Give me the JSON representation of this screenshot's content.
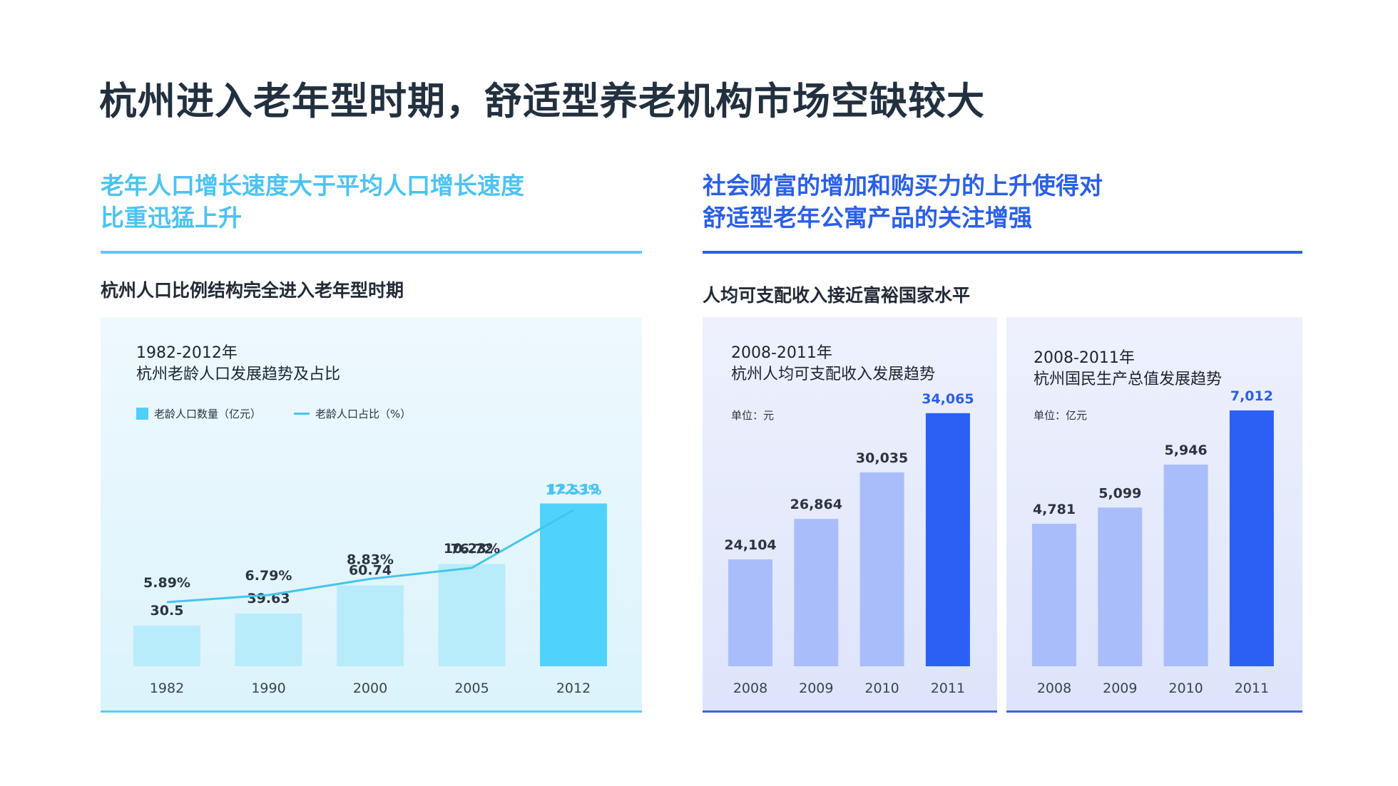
{
  "page": {
    "title": "杭州进入老年型时期，舒适型养老机构市场空缺较大"
  },
  "left": {
    "heading_line1": "老年人口增长速度大于平均人口增长速度",
    "heading_line2": "比重迅猛上升",
    "subheading": "杭州人口比例结构完全进入老年型时期"
  },
  "right": {
    "heading_line1": "社会财富的增加和购买力的上升使得对",
    "heading_line2": "舒适型老年公寓产品的关注增强",
    "subheading": "人均可支配收入接近富裕国家水平"
  },
  "colors": {
    "cyan": "#4cc3f0",
    "cyan_bar_light": "#b9ecfb",
    "cyan_bar_highlight": "#4fd3fd",
    "cyan_line": "#45c5ec",
    "blue": "#2a5fe6",
    "blue_bar_light": "#a9bdfa",
    "blue_bar_highlight": "#2c5ff4"
  },
  "chart_data": [
    {
      "type": "bar",
      "title_line1": "1982-2012年",
      "title_line2": "杭州老龄人口发展趋势及占比",
      "categories": [
        "1982",
        "1990",
        "2000",
        "2005",
        "2012"
      ],
      "series": [
        {
          "name": "老龄人口数量（亿元）",
          "type": "bar",
          "values": [
            30.5,
            39.63,
            60.74,
            76.72,
            122.19
          ],
          "labels": [
            "30.5",
            "39.63",
            "60.74",
            "76.72",
            "122.19"
          ],
          "highlight_index": 4
        },
        {
          "name": "老龄人口占比（%）",
          "type": "line",
          "values": [
            5.89,
            6.79,
            8.83,
            10.23,
            17.53
          ],
          "labels": [
            "5.89%",
            "6.79%",
            "8.83%",
            "10.23%",
            "17.53%"
          ]
        }
      ],
      "grid": false,
      "legend": "top-left"
    },
    {
      "type": "bar",
      "title_line1": "2008-2011年",
      "title_line2": "杭州人均可支配收入发展趋势",
      "unit": "单位：元",
      "categories": [
        "2008",
        "2009",
        "2010",
        "2011"
      ],
      "values": [
        24104,
        26864,
        30035,
        34065
      ],
      "labels": [
        "24,104",
        "26,864",
        "30,035",
        "34,065"
      ],
      "highlight_index": 3,
      "grid": false
    },
    {
      "type": "bar",
      "title_line1": "2008-2011年",
      "title_line2": "杭州国民生产总值发展趋势",
      "unit": "单位：亿元",
      "categories": [
        "2008",
        "2009",
        "2010",
        "2011"
      ],
      "values": [
        4781,
        5099,
        5946,
        7012
      ],
      "labels": [
        "4,781",
        "5,099",
        "5,946",
        "7,012"
      ],
      "highlight_index": 3,
      "grid": false
    }
  ]
}
